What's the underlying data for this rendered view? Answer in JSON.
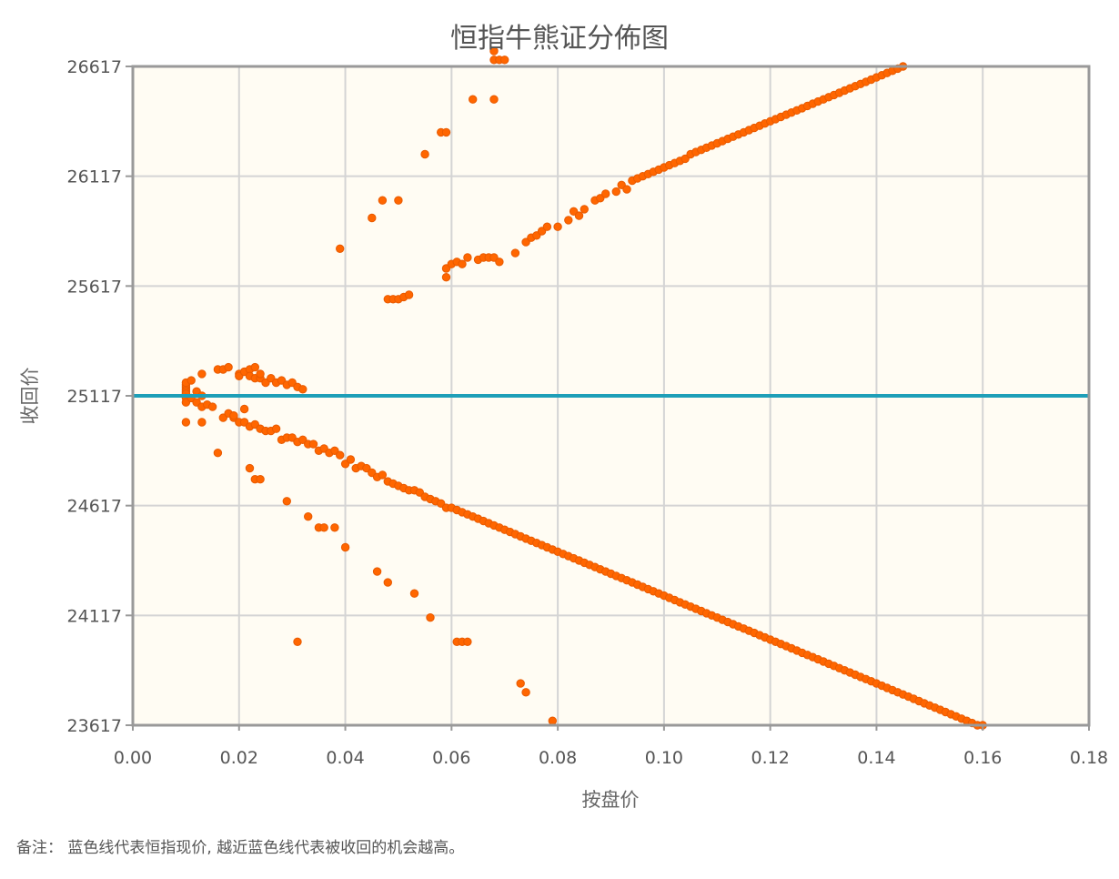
{
  "chart_data": {
    "type": "scatter",
    "title": "恒指牛熊证分佈图",
    "xlabel": "按盘价",
    "ylabel": "收回价",
    "xlim": [
      0,
      0.18
    ],
    "ylim": [
      23617,
      26617
    ],
    "x_ticks": [
      "0.00",
      "0.02",
      "0.04",
      "0.06",
      "0.08",
      "0.10",
      "0.12",
      "0.14",
      "0.16",
      "0.18"
    ],
    "y_ticks": [
      "23617",
      "24117",
      "24617",
      "25117",
      "25617",
      "26117",
      "26617"
    ],
    "grid": true,
    "point_color": "#ff6600",
    "reference_line": {
      "y": 25117,
      "color": "#1e9fb8"
    },
    "background_color": "#fffcf3",
    "series": [
      {
        "points": [
          [
            0.01,
            25147
          ],
          [
            0.01,
            25157
          ],
          [
            0.01,
            25167
          ],
          [
            0.01,
            25177
          ],
          [
            0.01,
            25137
          ],
          [
            0.01,
            25127
          ],
          [
            0.01,
            25107
          ],
          [
            0.01,
            24997
          ],
          [
            0.01,
            25087
          ],
          [
            0.011,
            25107
          ],
          [
            0.011,
            25187
          ],
          [
            0.012,
            25137
          ],
          [
            0.012,
            25087
          ],
          [
            0.013,
            25067
          ],
          [
            0.013,
            25217
          ],
          [
            0.013,
            25117
          ],
          [
            0.013,
            24997
          ],
          [
            0.014,
            25077
          ],
          [
            0.015,
            25067
          ],
          [
            0.016,
            24857
          ],
          [
            0.016,
            25237
          ],
          [
            0.017,
            25017
          ],
          [
            0.017,
            25237
          ],
          [
            0.018,
            25037
          ],
          [
            0.018,
            25247
          ],
          [
            0.019,
            25017
          ],
          [
            0.019,
            25027
          ],
          [
            0.02,
            25217
          ],
          [
            0.02,
            25207
          ],
          [
            0.02,
            24997
          ],
          [
            0.021,
            24997
          ],
          [
            0.021,
            25227
          ],
          [
            0.021,
            25057
          ],
          [
            0.022,
            24787
          ],
          [
            0.022,
            24977
          ],
          [
            0.022,
            25237
          ],
          [
            0.022,
            25207
          ],
          [
            0.023,
            24987
          ],
          [
            0.023,
            24737
          ],
          [
            0.023,
            25247
          ],
          [
            0.023,
            25197
          ],
          [
            0.024,
            24967
          ],
          [
            0.024,
            24737
          ],
          [
            0.024,
            25197
          ],
          [
            0.024,
            25217
          ],
          [
            0.025,
            24957
          ],
          [
            0.025,
            25177
          ],
          [
            0.026,
            24957
          ],
          [
            0.026,
            25197
          ],
          [
            0.027,
            24967
          ],
          [
            0.027,
            25177
          ],
          [
            0.028,
            24917
          ],
          [
            0.028,
            25187
          ],
          [
            0.029,
            24927
          ],
          [
            0.029,
            24637
          ],
          [
            0.029,
            25167
          ],
          [
            0.03,
            24927
          ],
          [
            0.03,
            25177
          ],
          [
            0.031,
            24907
          ],
          [
            0.031,
            23997
          ],
          [
            0.031,
            25157
          ],
          [
            0.032,
            24917
          ],
          [
            0.032,
            25147
          ],
          [
            0.033,
            24897
          ],
          [
            0.033,
            24567
          ],
          [
            0.034,
            24897
          ],
          [
            0.035,
            24867
          ],
          [
            0.035,
            24517
          ],
          [
            0.036,
            24877
          ],
          [
            0.036,
            24517
          ],
          [
            0.037,
            24857
          ],
          [
            0.038,
            24867
          ],
          [
            0.038,
            24517
          ],
          [
            0.039,
            24847
          ],
          [
            0.039,
            25787
          ],
          [
            0.04,
            24807
          ],
          [
            0.04,
            24427
          ],
          [
            0.041,
            24827
          ],
          [
            0.042,
            24787
          ],
          [
            0.043,
            24797
          ],
          [
            0.044,
            24787
          ],
          [
            0.045,
            24767
          ],
          [
            0.045,
            25927
          ],
          [
            0.046,
            24747
          ],
          [
            0.046,
            24317
          ],
          [
            0.047,
            24757
          ],
          [
            0.047,
            26007
          ],
          [
            0.048,
            24727
          ],
          [
            0.048,
            24267
          ],
          [
            0.048,
            25557
          ],
          [
            0.049,
            24717
          ],
          [
            0.049,
            25557
          ],
          [
            0.05,
            24707
          ],
          [
            0.05,
            26007
          ],
          [
            0.05,
            25557
          ],
          [
            0.051,
            24697
          ],
          [
            0.051,
            25567
          ],
          [
            0.052,
            24687
          ],
          [
            0.052,
            25577
          ],
          [
            0.053,
            24687
          ],
          [
            0.053,
            24217
          ],
          [
            0.054,
            24677
          ],
          [
            0.055,
            24657
          ],
          [
            0.055,
            26217
          ],
          [
            0.056,
            24647
          ],
          [
            0.056,
            24107
          ],
          [
            0.057,
            24637
          ],
          [
            0.058,
            24627
          ],
          [
            0.058,
            26317
          ],
          [
            0.059,
            24607
          ],
          [
            0.059,
            26317
          ],
          [
            0.059,
            25697
          ],
          [
            0.059,
            25657
          ],
          [
            0.06,
            24607
          ],
          [
            0.06,
            25717
          ],
          [
            0.061,
            24597
          ],
          [
            0.061,
            25727
          ],
          [
            0.061,
            23997
          ],
          [
            0.062,
            24587
          ],
          [
            0.062,
            25717
          ],
          [
            0.062,
            23997
          ],
          [
            0.063,
            24577
          ],
          [
            0.063,
            25747
          ],
          [
            0.063,
            23997
          ],
          [
            0.064,
            24567
          ],
          [
            0.064,
            26467
          ],
          [
            0.065,
            24557
          ],
          [
            0.065,
            25737
          ],
          [
            0.066,
            24547
          ],
          [
            0.066,
            25747
          ],
          [
            0.067,
            24537
          ],
          [
            0.067,
            25747
          ],
          [
            0.068,
            24527
          ],
          [
            0.068,
            26687
          ],
          [
            0.068,
            26647
          ],
          [
            0.068,
            26467
          ],
          [
            0.068,
            25747
          ],
          [
            0.069,
            24517
          ],
          [
            0.069,
            26647
          ],
          [
            0.069,
            25727
          ],
          [
            0.07,
            24507
          ],
          [
            0.07,
            26647
          ],
          [
            0.071,
            24497
          ],
          [
            0.072,
            24487
          ],
          [
            0.072,
            25767
          ],
          [
            0.073,
            24477
          ],
          [
            0.073,
            23807
          ],
          [
            0.074,
            24467
          ],
          [
            0.074,
            23767
          ],
          [
            0.074,
            25817
          ],
          [
            0.075,
            24457
          ],
          [
            0.075,
            25837
          ],
          [
            0.076,
            24447
          ],
          [
            0.076,
            25847
          ],
          [
            0.077,
            24437
          ],
          [
            0.077,
            25867
          ],
          [
            0.078,
            24427
          ],
          [
            0.078,
            25887
          ],
          [
            0.079,
            24417
          ],
          [
            0.079,
            23637
          ],
          [
            0.08,
            24407
          ],
          [
            0.08,
            25887
          ],
          [
            0.081,
            24397
          ],
          [
            0.082,
            24387
          ],
          [
            0.082,
            25917
          ],
          [
            0.083,
            24377
          ],
          [
            0.083,
            25957
          ],
          [
            0.084,
            24367
          ],
          [
            0.084,
            25937
          ],
          [
            0.085,
            24357
          ],
          [
            0.085,
            25967
          ],
          [
            0.086,
            24347
          ],
          [
            0.087,
            24337
          ],
          [
            0.087,
            26007
          ],
          [
            0.088,
            24327
          ],
          [
            0.088,
            26017
          ],
          [
            0.089,
            24317
          ],
          [
            0.089,
            26037
          ],
          [
            0.09,
            24307
          ],
          [
            0.091,
            24297
          ],
          [
            0.091,
            26047
          ],
          [
            0.092,
            24287
          ],
          [
            0.092,
            26077
          ],
          [
            0.093,
            24277
          ],
          [
            0.093,
            26057
          ],
          [
            0.094,
            24267
          ],
          [
            0.094,
            26097
          ],
          [
            0.095,
            24257
          ],
          [
            0.095,
            26107
          ],
          [
            0.096,
            24247
          ],
          [
            0.096,
            26117
          ],
          [
            0.097,
            24237
          ],
          [
            0.097,
            26127
          ],
          [
            0.098,
            24227
          ],
          [
            0.098,
            26137
          ],
          [
            0.099,
            24217
          ],
          [
            0.099,
            26147
          ],
          [
            0.1,
            24207
          ],
          [
            0.1,
            26157
          ],
          [
            0.101,
            24197
          ],
          [
            0.101,
            26167
          ],
          [
            0.102,
            24187
          ],
          [
            0.102,
            26177
          ],
          [
            0.103,
            24177
          ],
          [
            0.103,
            26187
          ],
          [
            0.104,
            24167
          ],
          [
            0.104,
            26197
          ],
          [
            0.105,
            24157
          ],
          [
            0.105,
            26217
          ],
          [
            0.106,
            24147
          ],
          [
            0.106,
            26227
          ],
          [
            0.107,
            24137
          ],
          [
            0.107,
            26237
          ],
          [
            0.108,
            24127
          ],
          [
            0.108,
            26247
          ],
          [
            0.109,
            24117
          ],
          [
            0.109,
            26257
          ],
          [
            0.11,
            24107
          ],
          [
            0.11,
            26267
          ],
          [
            0.111,
            24097
          ],
          [
            0.111,
            26277
          ],
          [
            0.112,
            24087
          ],
          [
            0.112,
            26287
          ],
          [
            0.113,
            24077
          ],
          [
            0.113,
            26297
          ],
          [
            0.114,
            24067
          ],
          [
            0.114,
            26307
          ],
          [
            0.115,
            24057
          ],
          [
            0.115,
            26317
          ],
          [
            0.116,
            24047
          ],
          [
            0.116,
            26327
          ],
          [
            0.117,
            24037
          ],
          [
            0.117,
            26337
          ],
          [
            0.118,
            24027
          ],
          [
            0.118,
            26347
          ],
          [
            0.119,
            24017
          ],
          [
            0.119,
            26357
          ],
          [
            0.12,
            24007
          ],
          [
            0.12,
            26367
          ],
          [
            0.121,
            23997
          ],
          [
            0.121,
            26377
          ],
          [
            0.122,
            23987
          ],
          [
            0.122,
            26387
          ],
          [
            0.123,
            23977
          ],
          [
            0.123,
            26397
          ],
          [
            0.124,
            23967
          ],
          [
            0.124,
            26407
          ],
          [
            0.125,
            23957
          ],
          [
            0.125,
            26417
          ],
          [
            0.126,
            23947
          ],
          [
            0.126,
            26427
          ],
          [
            0.127,
            23937
          ],
          [
            0.127,
            26437
          ],
          [
            0.128,
            23927
          ],
          [
            0.128,
            26447
          ],
          [
            0.129,
            23917
          ],
          [
            0.129,
            26457
          ],
          [
            0.13,
            23907
          ],
          [
            0.13,
            26467
          ],
          [
            0.131,
            23897
          ],
          [
            0.131,
            26477
          ],
          [
            0.132,
            23887
          ],
          [
            0.132,
            26487
          ],
          [
            0.133,
            23877
          ],
          [
            0.133,
            26497
          ],
          [
            0.134,
            23867
          ],
          [
            0.134,
            26507
          ],
          [
            0.135,
            23857
          ],
          [
            0.135,
            26517
          ],
          [
            0.136,
            23847
          ],
          [
            0.136,
            26527
          ],
          [
            0.137,
            23837
          ],
          [
            0.137,
            26537
          ],
          [
            0.138,
            23827
          ],
          [
            0.138,
            26547
          ],
          [
            0.139,
            23817
          ],
          [
            0.139,
            26557
          ],
          [
            0.14,
            23807
          ],
          [
            0.14,
            26567
          ],
          [
            0.141,
            23797
          ],
          [
            0.141,
            26577
          ],
          [
            0.142,
            23787
          ],
          [
            0.142,
            26587
          ],
          [
            0.143,
            23777
          ],
          [
            0.143,
            26597
          ],
          [
            0.144,
            23767
          ],
          [
            0.144,
            26607
          ],
          [
            0.145,
            23757
          ],
          [
            0.145,
            26617
          ],
          [
            0.146,
            23747
          ],
          [
            0.147,
            23737
          ],
          [
            0.148,
            23727
          ],
          [
            0.149,
            23717
          ],
          [
            0.15,
            23707
          ],
          [
            0.151,
            23697
          ],
          [
            0.152,
            23687
          ],
          [
            0.153,
            23677
          ],
          [
            0.154,
            23667
          ],
          [
            0.155,
            23657
          ],
          [
            0.156,
            23647
          ],
          [
            0.157,
            23637
          ],
          [
            0.158,
            23627
          ],
          [
            0.159,
            23617
          ],
          [
            0.16,
            23617
          ]
        ]
      }
    ]
  },
  "footer": {
    "note": "备注： 蓝色线代表恒指现价, 越近蓝色线代表被收回的机会越高。"
  }
}
